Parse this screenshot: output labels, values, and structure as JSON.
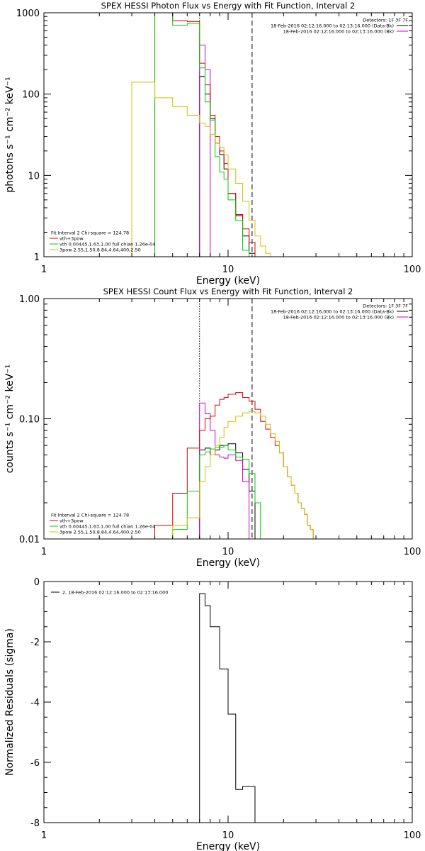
{
  "chart_data": [
    {
      "type": "line",
      "title": "SPEX HESSI Photon Flux vs Energy with Fit Function, Interval 2",
      "xlabel": "Energy (keV)",
      "ylabel": "photons s⁻¹ cm⁻² keV⁻¹",
      "xscale": "log",
      "yscale": "log",
      "xlim": [
        1,
        100
      ],
      "ylim": [
        1,
        1000
      ],
      "xticks": [
        {
          "v": 1,
          "label": "1"
        },
        {
          "v": 10,
          "label": "10"
        },
        {
          "v": 100,
          "label": "100"
        }
      ],
      "yticks": [
        {
          "v": 1,
          "label": "1"
        },
        {
          "v": 10,
          "label": "10"
        },
        {
          "v": 100,
          "label": "100"
        },
        {
          "v": 1000,
          "label": "1000"
        }
      ],
      "vlines": [
        {
          "x": 7.0,
          "style": "dotted"
        },
        {
          "x": 13.5,
          "style": "dashed"
        }
      ],
      "legend_top": [
        {
          "text": "Detectors: 1F 3F 7F",
          "color": "#000000",
          "line": false
        },
        {
          "text": "18-Feb-2016 02:12:16.000 to 02:13:16.000 (Data-Bk)",
          "color": "#000000",
          "line": true
        },
        {
          "text": "18-Feb-2016 02:12:16.000 to 02:13:16.000 (Bk)",
          "color": "#cc00cc",
          "line": true
        }
      ],
      "legend_bottom": [
        {
          "text": "Fit Interval 2   Chi-square = 124.78",
          "color": "#000000",
          "line": false
        },
        {
          "text": "vth+3pow",
          "color": "#dd0000",
          "line": true
        },
        {
          "text": "vth 0.00445,1.63,1.00  full chian 1.26e-04",
          "color": "#00cc00",
          "line": true
        },
        {
          "text": "3pow 2.55,1.50,8.84,4.64,400,2.50",
          "color": "#ddbb00",
          "line": true
        }
      ],
      "edges": [
        3,
        4,
        5,
        6,
        7,
        7.5,
        8,
        8.5,
        9,
        9.5,
        10,
        11,
        12,
        13,
        14,
        15,
        16,
        17,
        18
      ],
      "series": [
        {
          "key": "data",
          "color": "#000000",
          "values": [
            null,
            null,
            null,
            null,
            165,
            100,
            50,
            25,
            18,
            12,
            6,
            3.2,
            1.8,
            1.1,
            null,
            null,
            null,
            null
          ]
        },
        {
          "key": "bk",
          "color": "#cc00cc",
          "values": [
            null,
            null,
            null,
            null,
            400,
            200,
            null,
            null,
            null,
            null,
            null,
            null,
            null,
            null,
            null,
            null,
            null,
            null
          ]
        },
        {
          "key": "total",
          "color": "#dd0000",
          "values": [
            null,
            1400,
            800,
            780,
            240,
            130,
            55,
            30,
            20,
            14,
            6,
            3.3,
            2.2,
            1.5,
            1.0,
            null,
            null,
            null
          ]
        },
        {
          "key": "thermal",
          "color": "#00cc00",
          "values": [
            null,
            1400,
            700,
            740,
            210,
            80,
            48,
            17,
            11,
            9,
            5,
            2.8,
            1.2,
            1.0,
            null,
            null,
            null,
            null
          ]
        },
        {
          "key": "powerlaw",
          "color": "#ddbb00",
          "values": [
            140,
            90,
            70,
            55,
            44,
            40,
            32,
            25,
            22,
            18,
            12,
            8,
            4.8,
            2.8,
            1.8,
            1.35,
            1.1,
            1.0
          ]
        }
      ]
    },
    {
      "type": "line",
      "title": "SPEX HESSI Count Flux vs Energy with Fit Function, Interval 2",
      "xlabel": "Energy (keV)",
      "ylabel": "counts s⁻¹ cm⁻² keV⁻¹",
      "xscale": "log",
      "yscale": "log",
      "xlim": [
        1,
        100
      ],
      "ylim": [
        0.01,
        1.0
      ],
      "xticks": [
        {
          "v": 1,
          "label": "1"
        },
        {
          "v": 10,
          "label": "10"
        },
        {
          "v": 100,
          "label": "100"
        }
      ],
      "yticks": [
        {
          "v": 0.01,
          "label": "0.01"
        },
        {
          "v": 0.1,
          "label": "0.10"
        },
        {
          "v": 1.0,
          "label": "1.00"
        }
      ],
      "vlines": [
        {
          "x": 7.0,
          "style": "dotted"
        },
        {
          "x": 13.5,
          "style": "dashed"
        }
      ],
      "legend_top": [
        {
          "text": "Detectors: 1F 3F 7F",
          "color": "#000000",
          "line": false
        },
        {
          "text": "18-Feb-2016 02:12:16.000 to 02:13:16.000 (Data-Bk)",
          "color": "#000000",
          "line": true
        },
        {
          "text": "18-Feb-2016 02:12:16.000 to 02:13:16.000 (Bk)",
          "color": "#cc00cc",
          "line": true
        }
      ],
      "legend_bottom": [
        {
          "text": "Fit Interval 2   Chi-square = 124.78",
          "color": "#000000",
          "line": false
        },
        {
          "text": "vth+3pow",
          "color": "#dd0000",
          "line": true
        },
        {
          "text": "vth 0.00445,1.63,1.00  full chian 1.26e-04",
          "color": "#00cc00",
          "line": true
        },
        {
          "text": "3pow 2.55,1.50,8.84,4.64,400,2.50",
          "color": "#ddbb00",
          "line": true
        }
      ],
      "edges": [
        3,
        4,
        5,
        6,
        7,
        7.5,
        8,
        8.5,
        9,
        9.5,
        10,
        11,
        12,
        13,
        14,
        15,
        16,
        17,
        18,
        19,
        20,
        21,
        22,
        23,
        24,
        25,
        26,
        27,
        28,
        29,
        30
      ],
      "series": [
        {
          "key": "data",
          "color": "#000000",
          "values": [
            null,
            null,
            null,
            null,
            0.055,
            0.057,
            0.05,
            0.055,
            0.06,
            0.06,
            0.062,
            0.052,
            0.038,
            0.025,
            null,
            null,
            null,
            null,
            null,
            null,
            null,
            null,
            null,
            null,
            null,
            null,
            null,
            null,
            null,
            null
          ]
        },
        {
          "key": "bk",
          "color": "#cc00cc",
          "values": [
            null,
            null,
            null,
            null,
            0.135,
            0.11,
            0.08,
            0.05,
            0.048,
            0.047,
            0.05,
            0.045,
            0.03,
            0.01,
            null,
            null,
            null,
            null,
            null,
            null,
            null,
            null,
            null,
            null,
            null,
            null,
            null,
            null,
            null,
            null
          ]
        },
        {
          "key": "total",
          "color": "#dd0000",
          "values": [
            null,
            0.013,
            0.024,
            0.057,
            0.08,
            0.1,
            0.105,
            0.13,
            0.145,
            0.15,
            0.16,
            0.165,
            0.15,
            0.14,
            0.12,
            0.095,
            0.082,
            0.07,
            0.06,
            0.052,
            0.04,
            0.033,
            0.028,
            0.024,
            0.02,
            0.018,
            0.016,
            0.013,
            0.012,
            0.01
          ]
        },
        {
          "key": "thermal",
          "color": "#00cc00",
          "values": [
            null,
            null,
            0.012,
            0.025,
            0.05,
            0.053,
            0.056,
            0.058,
            0.058,
            0.06,
            0.055,
            0.048,
            0.046,
            0.035,
            0.02,
            null,
            null,
            null,
            null,
            null,
            null,
            null,
            null,
            null,
            null,
            null,
            null,
            null,
            null,
            null
          ]
        },
        {
          "key": "powerlaw",
          "color": "#ddbb00",
          "values": [
            0.01,
            0.01,
            0.013,
            0.015,
            0.03,
            0.04,
            0.05,
            0.06,
            0.07,
            0.085,
            0.095,
            0.105,
            0.112,
            0.115,
            0.112,
            0.105,
            0.09,
            0.075,
            0.065,
            0.052,
            0.04,
            0.033,
            0.028,
            0.024,
            0.02,
            0.018,
            0.016,
            0.013,
            0.012,
            0.01
          ]
        }
      ]
    },
    {
      "type": "line",
      "title": "",
      "xlabel": "Energy (keV)",
      "ylabel": "Normalized Residuals (sigma)",
      "xscale": "log",
      "yscale": "linear",
      "xlim": [
        1,
        100
      ],
      "ylim": [
        -8,
        0
      ],
      "xticks": [
        {
          "v": 1,
          "label": "1"
        },
        {
          "v": 10,
          "label": "10"
        },
        {
          "v": 100,
          "label": "100"
        }
      ],
      "yticks": [
        {
          "v": -8,
          "label": "-8"
        },
        {
          "v": -6,
          "label": "-6"
        },
        {
          "v": -4,
          "label": "-4"
        },
        {
          "v": -2,
          "label": "-2"
        },
        {
          "v": 0,
          "label": "0"
        }
      ],
      "legend_top": [],
      "legend_bottom": [],
      "legend_left": [
        {
          "text": "2, 18-Feb-2016 02:12:16.000 to 02:13:16.000",
          "color": "#000000",
          "line": true
        }
      ],
      "edges": [
        7,
        7.5,
        8,
        8.5,
        9,
        9.5,
        10,
        11,
        12,
        13,
        14
      ],
      "series": [
        {
          "key": "residuals",
          "color": "#000000",
          "values": [
            -0.4,
            -0.8,
            -1.5,
            -1.5,
            -2.9,
            -2.9,
            -4.4,
            -6.9,
            -6.8,
            -6.8
          ]
        }
      ]
    }
  ]
}
